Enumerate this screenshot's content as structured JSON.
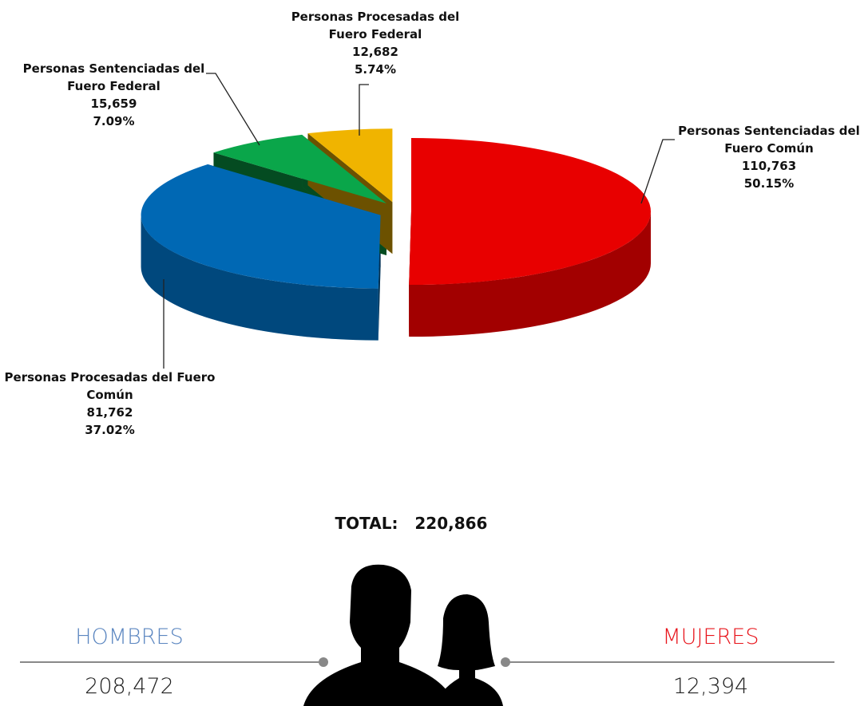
{
  "chart_data": {
    "type": "pie",
    "categories": [
      "Personas Sentenciadas del Fuero Común",
      "Personas Procesadas del Fuero Común",
      "Personas Sentenciadas del Fuero Federal",
      "Personas Procesadas del Fuero Federal"
    ],
    "values": [
      110763,
      81762,
      15659,
      12682
    ],
    "value_labels": [
      "110,763",
      "81,762",
      "15,659",
      "12,682"
    ],
    "percentages": [
      50.15,
      37.02,
      7.09,
      5.74
    ],
    "percentage_labels": [
      "50.15%",
      "37.02%",
      "7.09%",
      "5.74%"
    ],
    "colors": [
      "#e80000",
      "#0068b4",
      "#0aa64a",
      "#f0b400"
    ]
  },
  "summary": {
    "label": "TOTAL:",
    "value": "220,866"
  },
  "groups": [
    {
      "name": "HOMBRES",
      "value": "208,472",
      "color": "#5b86c0"
    },
    {
      "name": "MUJERES",
      "value": "12,394",
      "color": "#e8141b"
    }
  ]
}
